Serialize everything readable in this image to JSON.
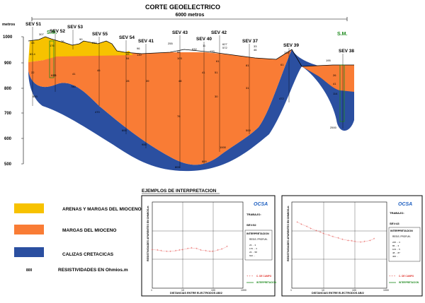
{
  "title": "CORTE GEOELECTRICO",
  "scale_label": "6000 metros",
  "y_axis": {
    "unit": "metros",
    "ticks": [
      "1000",
      "900",
      "800",
      "700",
      "600",
      "500"
    ]
  },
  "sm_labels": [
    "S.M.",
    "S.M."
  ],
  "sevs": [
    {
      "name": "SEV 51"
    },
    {
      "name": "SEV 52"
    },
    {
      "name": "SEV 53"
    },
    {
      "name": "SEV 55"
    },
    {
      "name": "SEV 54"
    },
    {
      "name": "SEV 41"
    },
    {
      "name": "SEV 43"
    },
    {
      "name": "SEV 40"
    },
    {
      "name": "SEV 42"
    },
    {
      "name": "SEV 37"
    },
    {
      "name": "SEV 39"
    },
    {
      "name": "SEV 38"
    }
  ],
  "resistivity_values": [
    "307",
    "43",
    "83.4",
    "22",
    "800",
    "176",
    "23",
    "622",
    "76",
    "90",
    "41",
    "780",
    "230",
    "46",
    "43",
    "54",
    "28",
    "39",
    "96",
    "130",
    "255",
    "86",
    "103",
    "48",
    "76",
    "600",
    "900",
    "800",
    "632",
    "11",
    "133",
    "627",
    "572",
    "61",
    "41",
    "30",
    "51",
    "31",
    "81",
    "800",
    "500",
    "33",
    "46",
    "722",
    "472",
    "61",
    "195",
    "26",
    "114",
    "2500",
    "41",
    "470",
    "1000"
  ],
  "legend": {
    "items": [
      {
        "label": "ARENAS Y MARGAS DEL MIOCENO",
        "color": "#f7c200"
      },
      {
        "label": "MARGAS DEL MIOCENO",
        "color": "#f97c35"
      },
      {
        "label": "CALIZAS CRETACICAS",
        "color": "#2b4fa0"
      }
    ],
    "resistivity_example": "800",
    "resistivity_label": "RESISTIVIDADES EN Ohmios.m"
  },
  "examples_title": "EJEMPLOS DE INTERPRETACION",
  "panels": [
    {
      "logo": "OCSA",
      "trabajo_label": "TRABAJO:",
      "sev": "SEV:52",
      "interp_title": "INTERPRETACION",
      "interp_header": "RESIS. PROFUN.",
      "interp_rows": [
        "23  ...  3",
        "176 ...  3",
        "23  ... 58",
        "622 ...   "
      ],
      "y_axis_label": "RESISTIVIDADES APARENTES EN OHMIOS.m",
      "x_axis_label": "DISTANCIAS ENTRE ELECTRODOS AB/2",
      "x_ticks": [
        "1",
        "10",
        "100",
        "1000"
      ],
      "legend_campo": "C. DE CAMPO",
      "legend_interp": "INTERPRETACION",
      "chart_data": {
        "type": "scatter",
        "x": [
          1,
          1.5,
          2,
          3,
          4,
          6,
          8,
          10,
          15,
          20,
          30,
          40,
          60,
          80,
          100,
          150,
          200,
          300
        ],
        "y": [
          22,
          21,
          20,
          19,
          19,
          20,
          21,
          22,
          24,
          25,
          24,
          21,
          20,
          19,
          19,
          21,
          23,
          28
        ]
      }
    },
    {
      "logo": "OCSA",
      "trabajo_label": "TRABAJO:",
      "sev": "SEV:43",
      "interp_title": "INTERPRETACION",
      "interp_header": "RESIS. PROFUN.",
      "interp_rows": [
        "225 ... 3",
        "86 ...  3",
        "103 ... 5",
        "48 ... 87",
        "400 ...  "
      ],
      "y_axis_label": "RESISTIVIDADES APARENTES EN OHMIOS.m",
      "x_axis_label": "DISTANCIAS ENTRE ELECTRODOS AB/2",
      "x_ticks": [
        "1",
        "10",
        "100",
        "1000"
      ],
      "legend_campo": "C. DE CAMPO",
      "legend_interp": "INTERPRETACION",
      "chart_data": {
        "type": "scatter",
        "x": [
          1.5,
          2,
          3,
          4,
          6,
          8,
          10,
          15,
          20,
          30,
          40,
          60,
          80,
          100,
          150,
          200,
          300,
          400
        ],
        "y": [
          200,
          170,
          140,
          120,
          100,
          90,
          80,
          70,
          62,
          55,
          50,
          46,
          44,
          42,
          40,
          42,
          46,
          52
        ]
      }
    }
  ]
}
